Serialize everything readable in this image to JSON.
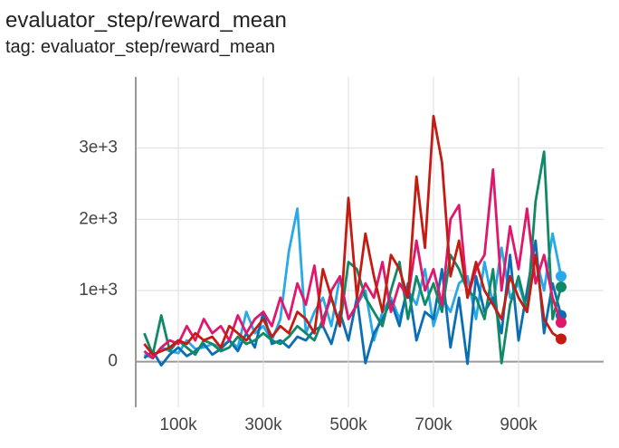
{
  "chart_data": {
    "type": "line",
    "title": "evaluator_step/reward_mean",
    "subtitle": "tag: evaluator_step/reward_mean",
    "x": [
      20000,
      40000,
      60000,
      80000,
      100000,
      120000,
      140000,
      160000,
      180000,
      200000,
      220000,
      240000,
      260000,
      280000,
      300000,
      320000,
      340000,
      360000,
      380000,
      400000,
      420000,
      440000,
      460000,
      480000,
      500000,
      520000,
      540000,
      560000,
      580000,
      600000,
      620000,
      640000,
      660000,
      680000,
      700000,
      720000,
      740000,
      760000,
      780000,
      800000,
      820000,
      840000,
      860000,
      880000,
      900000,
      920000,
      940000,
      960000,
      980000,
      1000000
    ],
    "xlim": [
      0,
      1100000
    ],
    "ylim": [
      -640,
      4000
    ],
    "xticks": [
      {
        "value": 100000,
        "label": "100k"
      },
      {
        "value": 300000,
        "label": "300k"
      },
      {
        "value": 500000,
        "label": "500k"
      },
      {
        "value": 700000,
        "label": "700k"
      },
      {
        "value": 900000,
        "label": "900k"
      }
    ],
    "yticks": [
      0,
      {
        "value": 1000,
        "label": "1e+3"
      },
      {
        "value": 2000,
        "label": "2e+3"
      },
      {
        "value": 3000,
        "label": "3e+3"
      }
    ],
    "grid": true,
    "series": [
      {
        "color": "#29a9e8",
        "values": [
          100,
          50,
          200,
          150,
          120,
          300,
          180,
          200,
          250,
          200,
          300,
          200,
          700,
          400,
          500,
          300,
          600,
          1550,
          2150,
          400,
          700,
          900,
          500,
          1200,
          600,
          800,
          1000,
          300,
          700,
          900,
          600,
          1000,
          800,
          1300,
          500,
          900,
          700,
          1100,
          1200,
          600,
          1400,
          800,
          1600,
          900,
          1100,
          700,
          1500,
          1000,
          1800,
          1200
        ]
      },
      {
        "color": "#0a6eb4",
        "values": [
          50,
          150,
          -50,
          100,
          200,
          80,
          150,
          250,
          100,
          180,
          300,
          150,
          400,
          200,
          700,
          250,
          300,
          200,
          350,
          300,
          450,
          500,
          250,
          700,
          300,
          900,
          -20,
          400,
          600,
          850,
          500,
          1100,
          300,
          700,
          600,
          1300,
          200,
          900,
          -30,
          1200,
          700,
          900,
          400,
          1500,
          300,
          1000,
          1700,
          400,
          1100,
          650
        ]
      },
      {
        "color": "#118866",
        "values": [
          400,
          100,
          650,
          150,
          300,
          200,
          100,
          300,
          250,
          150,
          200,
          350,
          250,
          300,
          400,
          300,
          250,
          350,
          500,
          400,
          300,
          600,
          900,
          500,
          1400,
          1300,
          900,
          700,
          500,
          1000,
          1400,
          600,
          1200,
          800,
          1100,
          700,
          1500,
          1300,
          1000,
          900,
          600,
          1300,
          -20,
          800,
          1200,
          700,
          2250,
          2950,
          600,
          1050
        ]
      },
      {
        "color": "#e0186c",
        "values": [
          150,
          50,
          200,
          300,
          250,
          500,
          300,
          600,
          400,
          500,
          300,
          650,
          400,
          600,
          700,
          500,
          900,
          600,
          1100,
          800,
          1350,
          500,
          1000,
          1200,
          600,
          800,
          1100,
          900,
          1400,
          700,
          1100,
          900,
          1700,
          1000,
          1300,
          800,
          2000,
          2200,
          900,
          1300,
          1500,
          2700,
          1000,
          1900,
          1300,
          2150,
          1100,
          1500,
          900,
          550
        ]
      },
      {
        "color": "#c41c12",
        "values": [
          250,
          100,
          150,
          200,
          300,
          250,
          400,
          300,
          350,
          200,
          500,
          400,
          300,
          450,
          600,
          350,
          500,
          400,
          700,
          600,
          400,
          1300,
          900,
          500,
          2300,
          900,
          1800,
          1200,
          700,
          1500,
          1300,
          900,
          2600,
          1600,
          3450,
          2800,
          1200,
          1700,
          900,
          1400,
          1000,
          800,
          600,
          1200,
          900,
          700,
          1500,
          600,
          400,
          320
        ]
      }
    ]
  }
}
